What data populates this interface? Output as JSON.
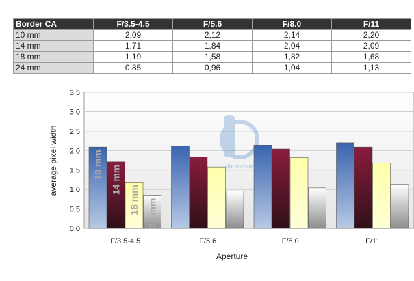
{
  "table": {
    "corner": "Border CA",
    "columns": [
      "F/3.5-4.5",
      "F/5.6",
      "F/8.0",
      "F/11"
    ],
    "rows": [
      {
        "label": "10 mm",
        "values": [
          "2,09",
          "2,12",
          "2,14",
          "2,20"
        ]
      },
      {
        "label": "14 mm",
        "values": [
          "1,71",
          "1,84",
          "2,04",
          "2,09"
        ]
      },
      {
        "label": "18 mm",
        "values": [
          "1,19",
          "1,58",
          "1,82",
          "1,68"
        ]
      },
      {
        "label": "24 mm",
        "values": [
          "0,85",
          "0,96",
          "1,04",
          "1,13"
        ]
      }
    ]
  },
  "chart_data": {
    "type": "bar",
    "categories": [
      "F/3.5-4.5",
      "F/5.6",
      "F/8.0",
      "F/11"
    ],
    "series": [
      {
        "name": "10 mm",
        "values": [
          2.09,
          2.12,
          2.14,
          2.2
        ]
      },
      {
        "name": "14 mm",
        "values": [
          1.71,
          1.84,
          2.04,
          2.09
        ]
      },
      {
        "name": "18 mm",
        "values": [
          1.19,
          1.58,
          1.82,
          1.68
        ]
      },
      {
        "name": "24 mm",
        "values": [
          0.85,
          0.96,
          1.04,
          1.13
        ]
      }
    ],
    "xlabel": "Aperture",
    "ylabel": "average pixel width",
    "ylim": [
      0,
      3.5
    ],
    "yticks": [
      "0,0",
      "0,5",
      "1,0",
      "1,5",
      "2,0",
      "2,5",
      "3,0",
      "3,5"
    ],
    "grid": true,
    "series_colors": [
      "#3a64b0",
      "#8a1c3e",
      "#ffffaa",
      "#ffffff"
    ],
    "watermark": "photozone"
  }
}
